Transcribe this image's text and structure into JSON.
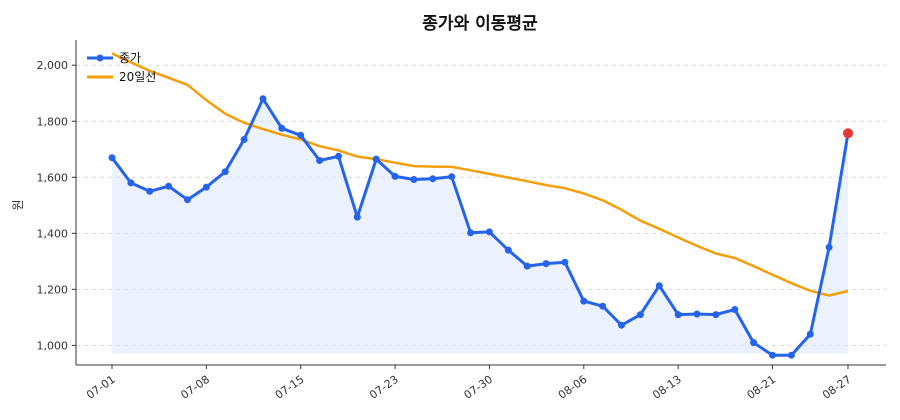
{
  "chart_data": {
    "type": "line",
    "title": "종가와 이동평균",
    "xlabel": "",
    "ylabel": "원",
    "ylim": [
      930,
      2090
    ],
    "yticks": [
      1000,
      1200,
      1400,
      1600,
      1800,
      2000
    ],
    "ytick_labels": [
      "1,000",
      "1,200",
      "1,400",
      "1,600",
      "1,800",
      "2,000"
    ],
    "xtick_labels": [
      "07-01",
      "07-08",
      "07-15",
      "07-23",
      "07-30",
      "08-06",
      "08-13",
      "08-21",
      "08-27"
    ],
    "xtick_index": [
      0,
      5,
      10,
      15,
      20,
      25,
      30,
      35,
      39
    ],
    "grid": true,
    "legend_position": "top-left",
    "series": [
      {
        "name": "종가",
        "color": "#2563eb",
        "marker": "circle",
        "fill_under": true,
        "highlight_last": "#e53935",
        "values": [
          1670,
          1580,
          1550,
          1568,
          1520,
          1565,
          1620,
          1735,
          1880,
          1775,
          1750,
          1660,
          1675,
          1458,
          1665,
          1603,
          1592,
          1595,
          1602,
          1402,
          1405,
          1340,
          1283,
          1292,
          1297,
          1158,
          1140,
          1072,
          1110,
          1213,
          1110,
          1112,
          1110,
          1128,
          1010,
          965,
          965,
          1040,
          1350,
          1757
        ]
      },
      {
        "name": "20일선",
        "color": "#f59e0b",
        "marker": "none",
        "values": [
          2042,
          2010,
          1980,
          1955,
          1930,
          1875,
          1827,
          1795,
          1772,
          1752,
          1735,
          1711,
          1696,
          1674,
          1665,
          1652,
          1640,
          1638,
          1637,
          1625,
          1612,
          1599,
          1586,
          1572,
          1561,
          1542,
          1518,
          1484,
          1445,
          1416,
          1385,
          1355,
          1328,
          1312,
          1283,
          1252,
          1222,
          1195,
          1178,
          1194
        ]
      }
    ]
  }
}
